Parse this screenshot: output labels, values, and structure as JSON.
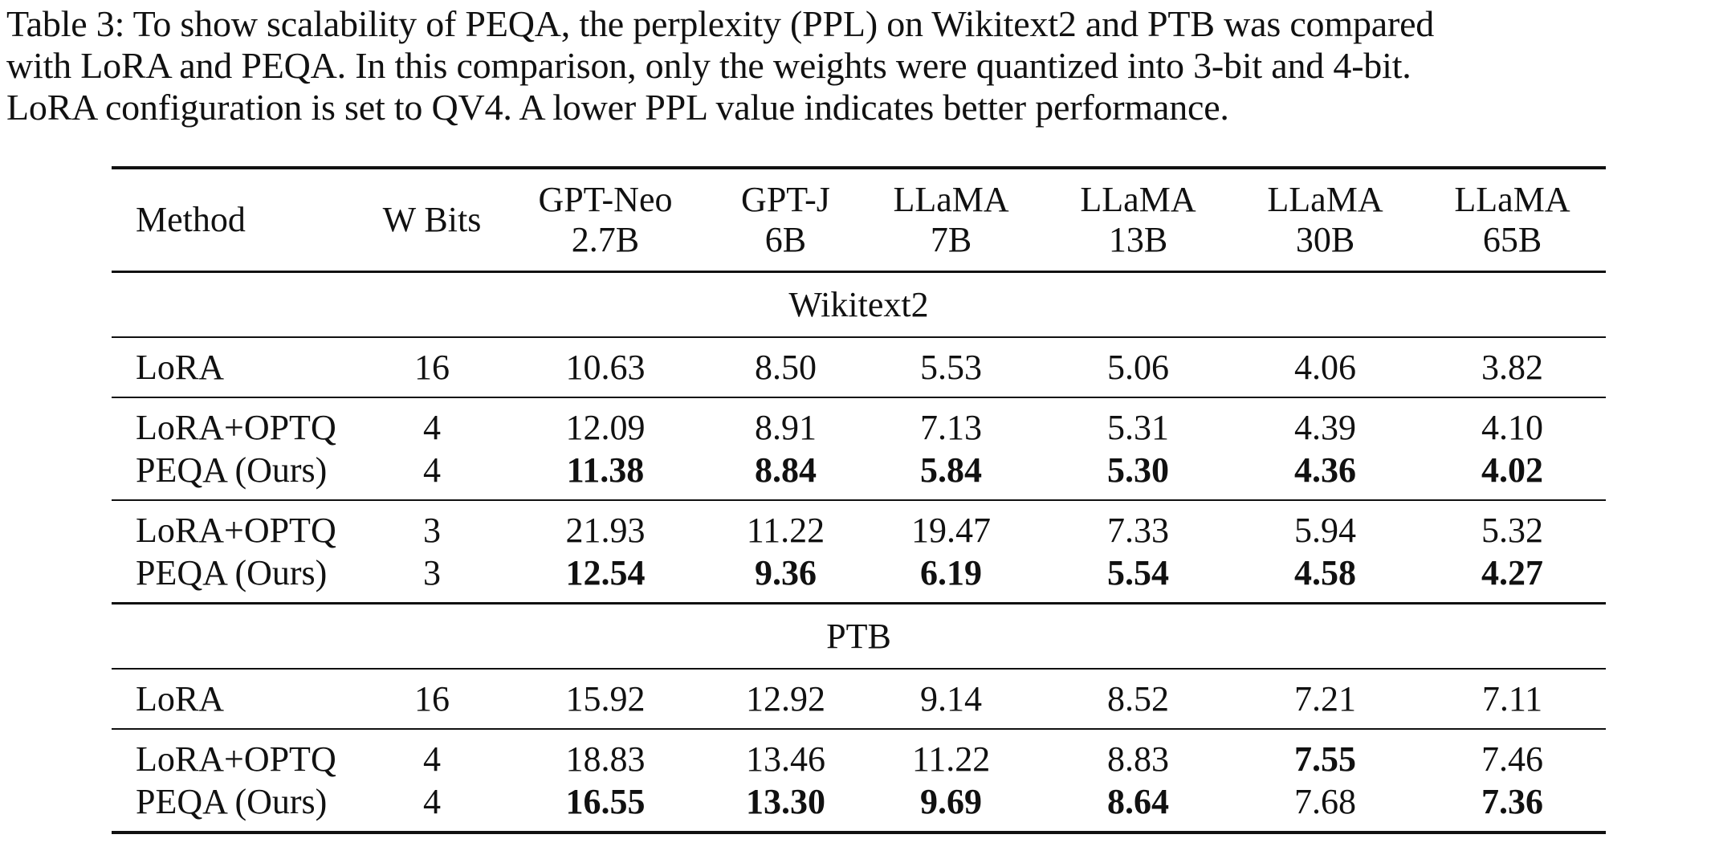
{
  "caption": "Table 3: To show scalability of PEQA, the perplexity (PPL) on Wikitext2 and PTB was compared\nwith LoRA and PEQA. In this comparison, only the weights were quantized into 3-bit and 4-bit.\nLoRA configuration is set to QV4. A lower PPL value indicates better performance.",
  "table": {
    "header": {
      "method": "Method",
      "bits": "W Bits",
      "models": [
        {
          "name": "GPT-Neo",
          "size": "2.7B"
        },
        {
          "name": "GPT-J",
          "size": "6B"
        },
        {
          "name": "LLaMA",
          "size": "7B"
        },
        {
          "name": "LLaMA",
          "size": "13B"
        },
        {
          "name": "LLaMA",
          "size": "30B"
        },
        {
          "name": "LLaMA",
          "size": "65B"
        }
      ]
    },
    "sections": [
      {
        "title": "Wikitext2",
        "rows": [
          {
            "method": "LoRA",
            "bits": "16",
            "values": [
              "10.63",
              "8.50",
              "5.53",
              "5.06",
              "4.06",
              "3.82"
            ],
            "bold": [
              false,
              false,
              false,
              false,
              false,
              false
            ]
          },
          {
            "method": "LoRA+OPTQ",
            "bits": "4",
            "values": [
              "12.09",
              "8.91",
              "7.13",
              "5.31",
              "4.39",
              "4.10"
            ],
            "bold": [
              false,
              false,
              false,
              false,
              false,
              false
            ]
          },
          {
            "method": "PEQA (Ours)",
            "bits": "4",
            "values": [
              "11.38",
              "8.84",
              "5.84",
              "5.30",
              "4.36",
              "4.02"
            ],
            "bold": [
              true,
              true,
              true,
              true,
              true,
              true
            ]
          },
          {
            "method": "LoRA+OPTQ",
            "bits": "3",
            "values": [
              "21.93",
              "11.22",
              "19.47",
              "7.33",
              "5.94",
              "5.32"
            ],
            "bold": [
              false,
              false,
              false,
              false,
              false,
              false
            ]
          },
          {
            "method": "PEQA (Ours)",
            "bits": "3",
            "values": [
              "12.54",
              "9.36",
              "6.19",
              "5.54",
              "4.58",
              "4.27"
            ],
            "bold": [
              true,
              true,
              true,
              true,
              true,
              true
            ]
          }
        ]
      },
      {
        "title": "PTB",
        "rows": [
          {
            "method": "LoRA",
            "bits": "16",
            "values": [
              "15.92",
              "12.92",
              "9.14",
              "8.52",
              "7.21",
              "7.11"
            ],
            "bold": [
              false,
              false,
              false,
              false,
              false,
              false
            ]
          },
          {
            "method": "LoRA+OPTQ",
            "bits": "4",
            "values": [
              "18.83",
              "13.46",
              "11.22",
              "8.83",
              "7.55",
              "7.46"
            ],
            "bold": [
              false,
              false,
              false,
              false,
              true,
              false
            ]
          },
          {
            "method": "PEQA (Ours)",
            "bits": "4",
            "values": [
              "16.55",
              "13.30",
              "9.69",
              "8.64",
              "7.68",
              "7.36"
            ],
            "bold": [
              true,
              true,
              true,
              true,
              false,
              true
            ]
          }
        ]
      }
    ]
  }
}
